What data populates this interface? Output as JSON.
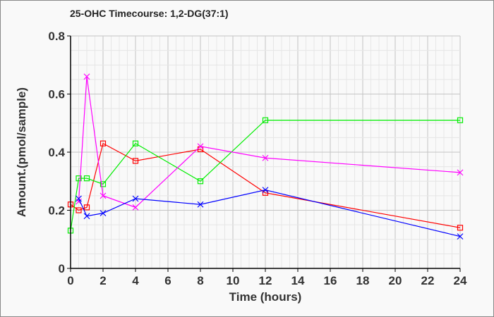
{
  "chart_data": {
    "type": "line",
    "title": "25-OHC Timecourse: 1,2-DG(37:1)",
    "xlabel": "Time (hours)",
    "ylabel": "Amount.(pmol/sample)",
    "xlim": [
      0,
      24
    ],
    "ylim": [
      0,
      0.8
    ],
    "x_ticks": [
      "0",
      "2",
      "4",
      "6",
      "8",
      "10",
      "12",
      "14",
      "16",
      "18",
      "20",
      "22",
      "24"
    ],
    "y_ticks": [
      "0",
      "0.2",
      "0.4",
      "0.6",
      "0.8"
    ],
    "grid": true,
    "legend": "none",
    "series": [
      {
        "name": "red",
        "color": "#ff0000",
        "marker": "square",
        "x": [
          0,
          0.5,
          1,
          2,
          4,
          8,
          12,
          24
        ],
        "y": [
          0.22,
          0.2,
          0.21,
          0.43,
          0.37,
          0.41,
          0.26,
          0.14
        ]
      },
      {
        "name": "green",
        "color": "#00ee00",
        "marker": "square",
        "x": [
          0,
          0.5,
          1,
          2,
          4,
          8,
          12,
          24
        ],
        "y": [
          0.13,
          0.31,
          0.31,
          0.29,
          0.43,
          0.3,
          0.51,
          0.51
        ]
      },
      {
        "name": "magenta",
        "color": "#ff00ff",
        "marker": "x",
        "x": [
          0.5,
          1,
          2,
          4,
          8,
          12,
          24
        ],
        "y": [
          0.23,
          0.66,
          0.25,
          0.21,
          0.42,
          0.38,
          0.33
        ]
      },
      {
        "name": "blue",
        "color": "#0000ff",
        "marker": "x",
        "x": [
          0.5,
          1,
          2,
          4,
          8,
          12,
          24
        ],
        "y": [
          0.24,
          0.18,
          0.19,
          0.24,
          0.22,
          0.27,
          0.11
        ]
      }
    ]
  }
}
